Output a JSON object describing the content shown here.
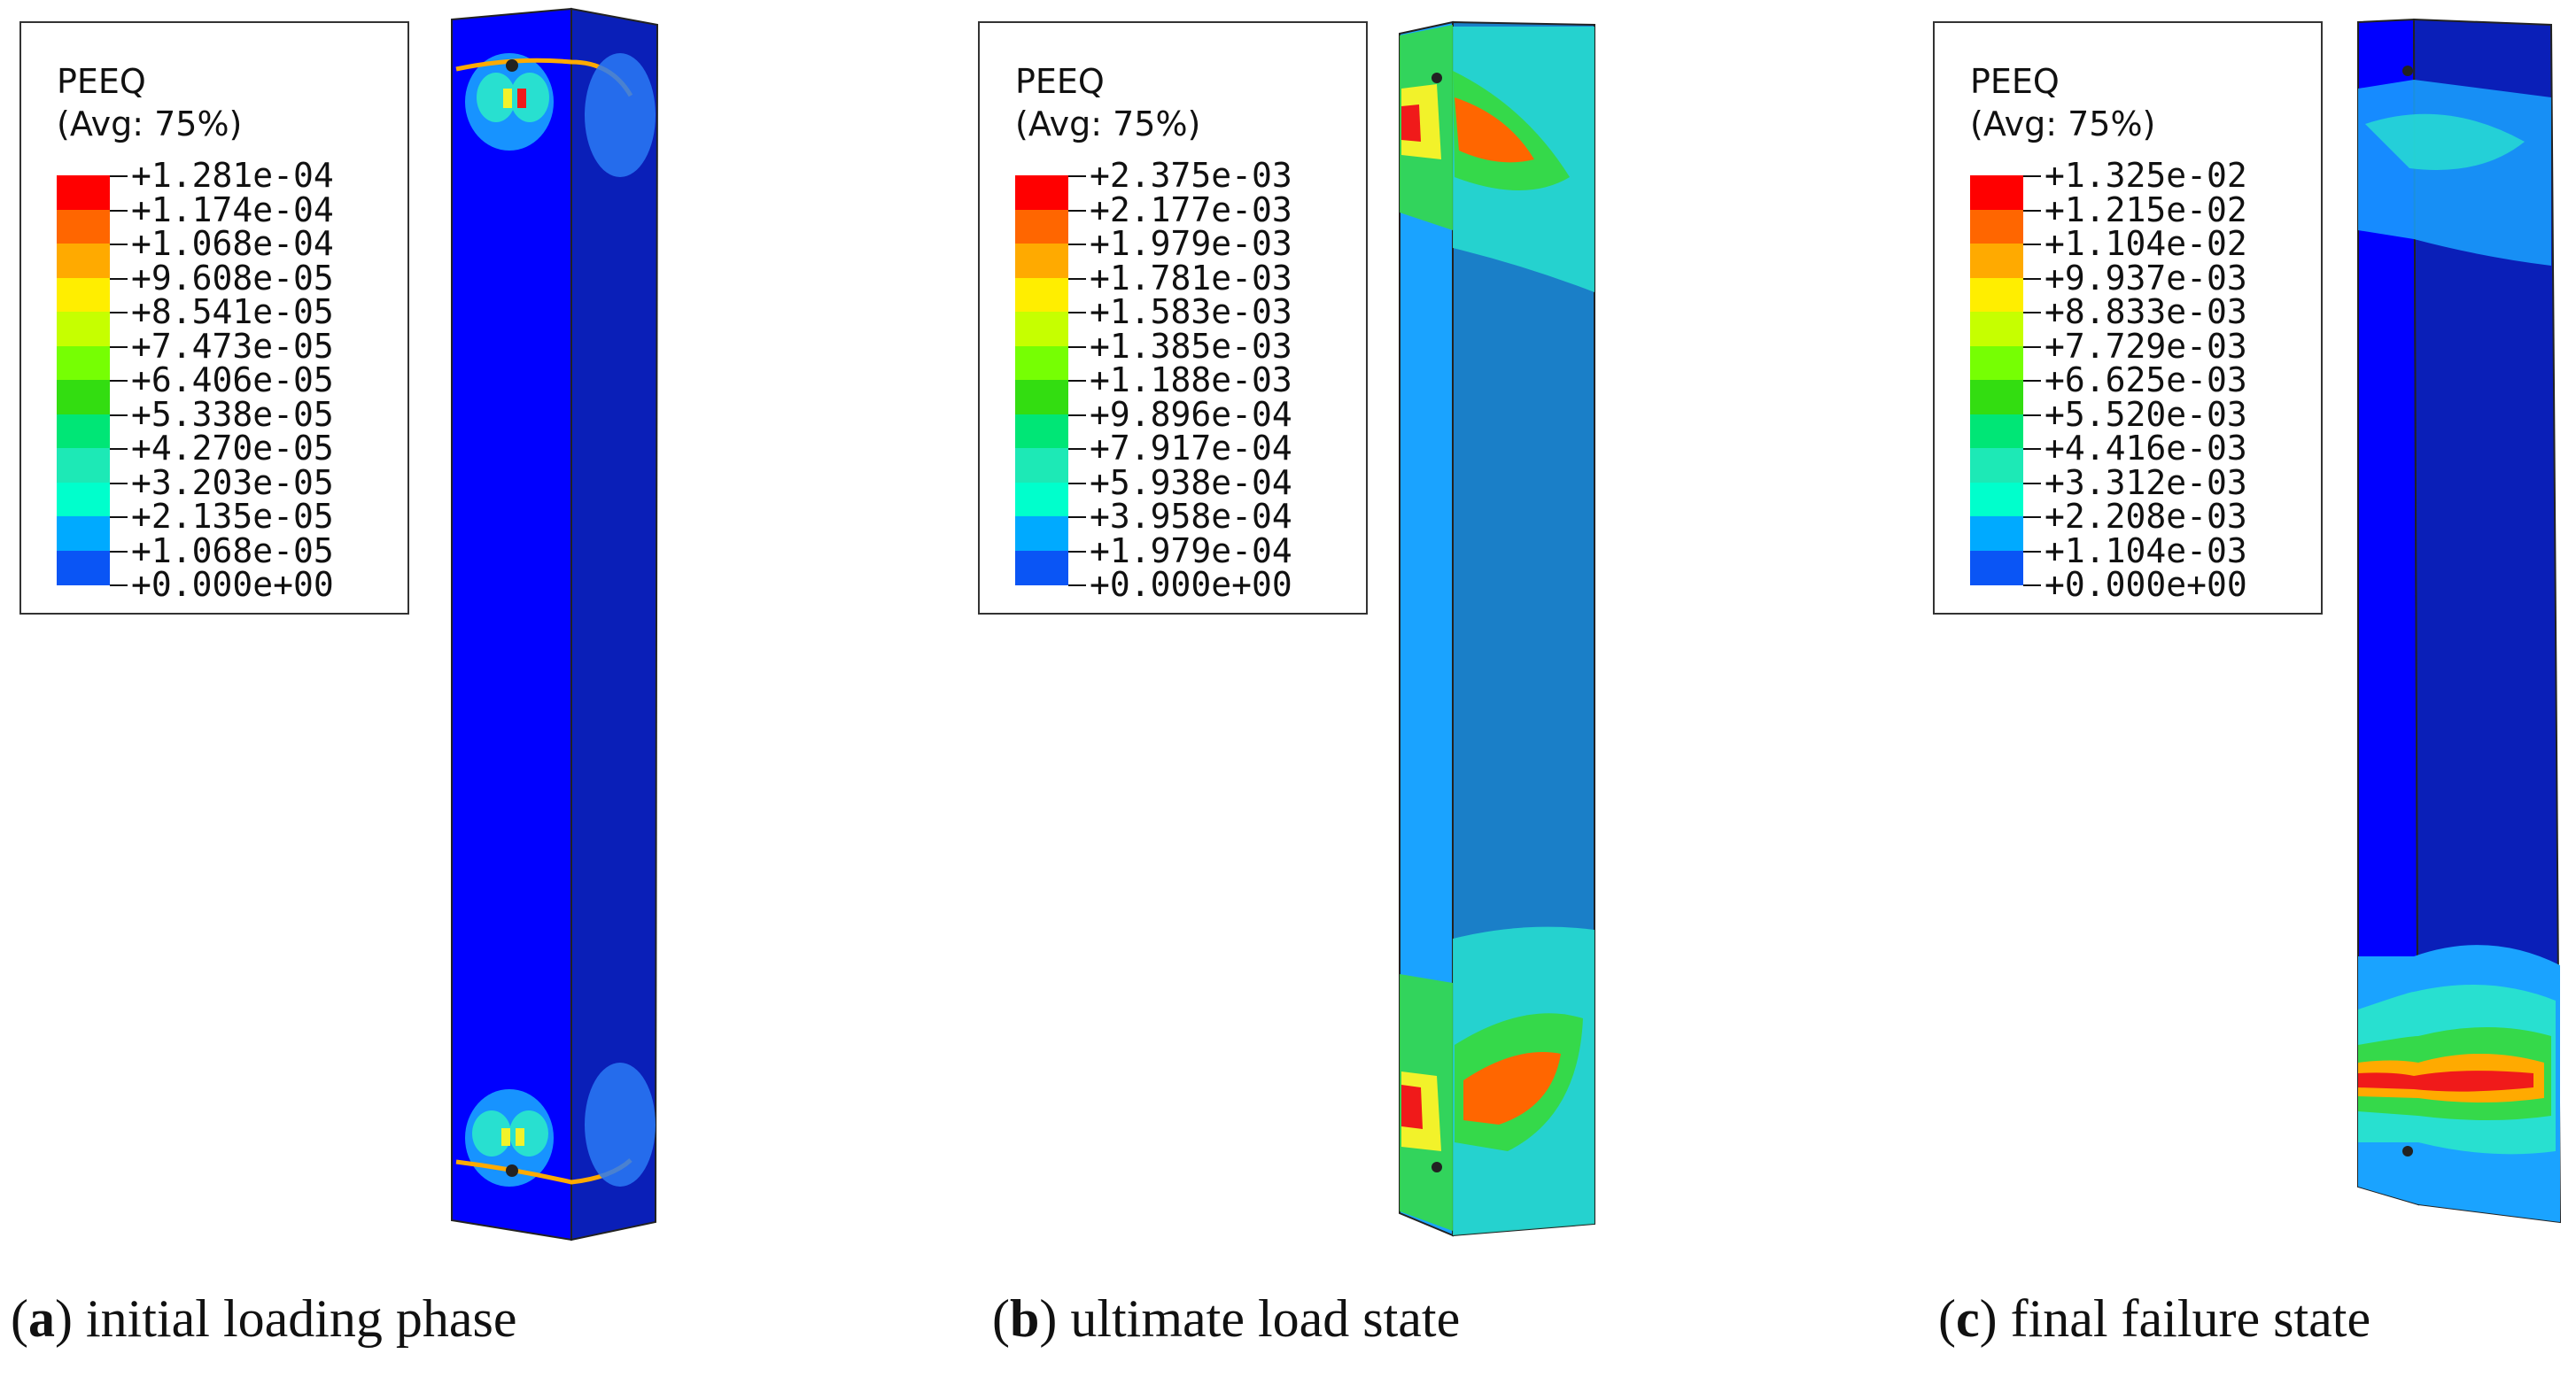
{
  "colors": {
    "contour": [
      "#0000ff",
      "#0a55f5",
      "#00aaff",
      "#00ffcc",
      "#1de9b6",
      "#00e676",
      "#33dd11",
      "#76ff03",
      "#c6ff00",
      "#ffee00",
      "#ffaa00",
      "#ff6600",
      "#ff0000"
    ],
    "deep_blue": "#0000ff",
    "side_blue": "#0a1fb8",
    "light_blue": "#1aa3ff",
    "side_light_blue": "#1a7fc8",
    "green": "#35d94a",
    "yellow": "#f2f22a",
    "red": "#f01a1a",
    "cyan": "#28e0d0"
  },
  "panels": [
    {
      "legend_title": "PEEQ",
      "legend_subtitle": "(Avg: 75%)",
      "levels": [
        "+1.281e-04",
        "+1.174e-04",
        "+1.068e-04",
        "+9.608e-05",
        "+8.541e-05",
        "+7.473e-05",
        "+6.406e-05",
        "+5.338e-05",
        "+4.270e-05",
        "+3.203e-05",
        "+2.135e-05",
        "+1.068e-05",
        "+0.000e+00"
      ],
      "caption_letter": "a",
      "caption_text": " initial loading phase"
    },
    {
      "legend_title": "PEEQ",
      "legend_subtitle": "(Avg: 75%)",
      "levels": [
        "+2.375e-03",
        "+2.177e-03",
        "+1.979e-03",
        "+1.781e-03",
        "+1.583e-03",
        "+1.385e-03",
        "+1.188e-03",
        "+9.896e-04",
        "+7.917e-04",
        "+5.938e-04",
        "+3.958e-04",
        "+1.979e-04",
        "+0.000e+00"
      ],
      "caption_letter": "b",
      "caption_text": " ultimate load state"
    },
    {
      "legend_title": "PEEQ",
      "legend_subtitle": "(Avg: 75%)",
      "levels": [
        "+1.325e-02",
        "+1.215e-02",
        "+1.104e-02",
        "+9.937e-03",
        "+8.833e-03",
        "+7.729e-03",
        "+6.625e-03",
        "+5.520e-03",
        "+4.416e-03",
        "+3.312e-03",
        "+2.208e-03",
        "+1.104e-03",
        "+0.000e+00"
      ],
      "caption_letter": "c",
      "caption_text": " final failure state"
    }
  ]
}
